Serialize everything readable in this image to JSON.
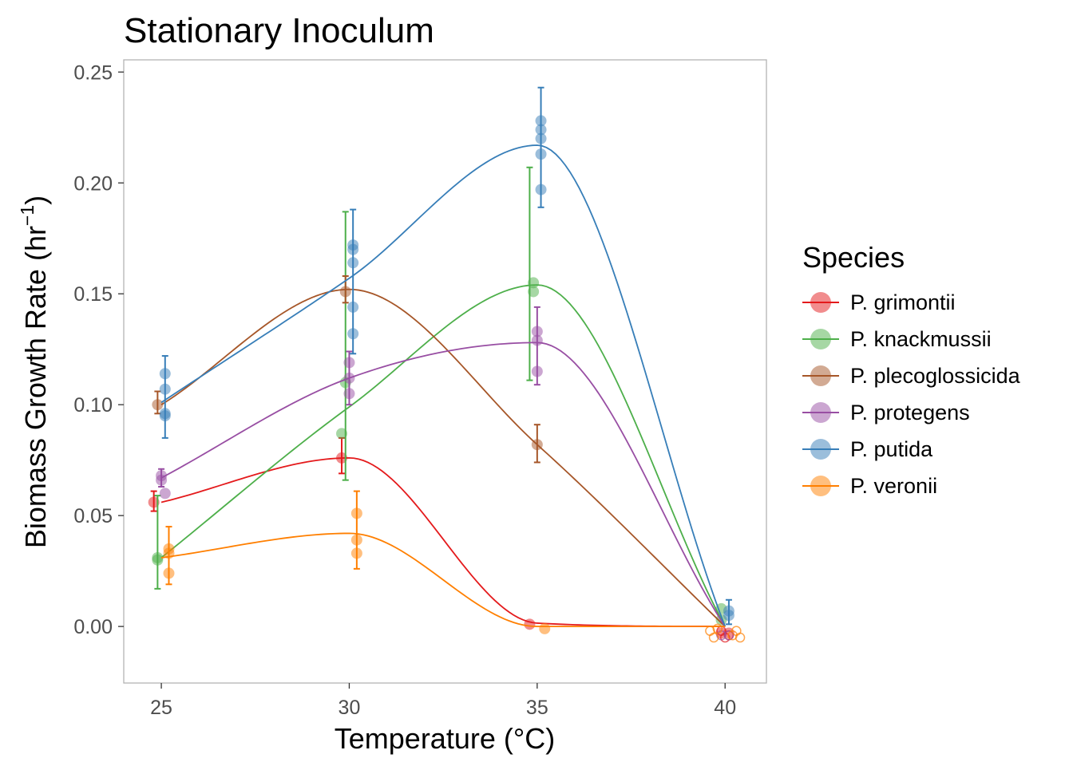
{
  "chart_data": {
    "type": "scatter",
    "title": "Stationary Inoculum",
    "xlabel": "Temperature (°C)",
    "ylabel_main": "Biomass Growth Rate (hr",
    "ylabel_sup": "−1",
    "ylabel_close": ")",
    "xlim": [
      24,
      41.1
    ],
    "ylim": [
      -0.0255,
      0.2555
    ],
    "x_ticks": [
      25,
      30,
      35,
      40
    ],
    "y_ticks": [
      0.0,
      0.05,
      0.1,
      0.15,
      0.2,
      0.25
    ],
    "y_tick_labels": [
      "0.00",
      "0.05",
      "0.10",
      "0.15",
      "0.20",
      "0.25"
    ],
    "grid": false,
    "legend": {
      "title": "Species",
      "position": "right"
    },
    "series": [
      {
        "name": "P. grimontii",
        "color": "#E41A1C",
        "curve": [
          [
            25,
            0.056
          ],
          [
            30,
            0.076
          ],
          [
            35,
            0.0015
          ],
          [
            40,
            0.0
          ]
        ],
        "points": [
          [
            24.8,
            0.056
          ],
          [
            29.8,
            0.076
          ],
          [
            34.8,
            0.001
          ],
          [
            39.9,
            -0.003
          ],
          [
            40.1,
            -0.003
          ]
        ],
        "errorbars": [
          [
            24.8,
            0.052,
            0.061
          ],
          [
            29.8,
            0.069,
            0.085
          ]
        ],
        "open_markers": [
          [
            39.9,
            -0.002
          ],
          [
            40.1,
            -0.004
          ],
          [
            40.0,
            -0.005
          ]
        ]
      },
      {
        "name": "P. knackmussii",
        "color": "#4DAF4A",
        "curve": [
          [
            25,
            0.031
          ],
          [
            30,
            0.099
          ],
          [
            35,
            0.154
          ],
          [
            40,
            0.0
          ]
        ],
        "points": [
          [
            24.9,
            0.031
          ],
          [
            24.9,
            0.03
          ],
          [
            29.8,
            0.087
          ],
          [
            29.9,
            0.11
          ],
          [
            34.9,
            0.155
          ],
          [
            34.9,
            0.151
          ],
          [
            39.9,
            0.008
          ],
          [
            39.9,
            0.003
          ]
        ],
        "errorbars": [
          [
            24.9,
            0.017,
            0.059
          ],
          [
            29.9,
            0.066,
            0.187
          ],
          [
            34.8,
            0.111,
            0.207
          ]
        ],
        "open_markers": []
      },
      {
        "name": "P. plecoglossicida",
        "color": "#A65628",
        "curve": [
          [
            25,
            0.1
          ],
          [
            30,
            0.152
          ],
          [
            35,
            0.082
          ],
          [
            40,
            0.0
          ]
        ],
        "points": [
          [
            24.9,
            0.1
          ],
          [
            29.9,
            0.151
          ],
          [
            35.0,
            0.082
          ]
        ],
        "errorbars": [
          [
            24.9,
            0.096,
            0.106
          ],
          [
            29.9,
            0.146,
            0.158
          ],
          [
            35.0,
            0.074,
            0.091
          ]
        ],
        "open_markers": []
      },
      {
        "name": "P. protegens",
        "color": "#984EA3",
        "curve": [
          [
            25,
            0.067
          ],
          [
            30,
            0.112
          ],
          [
            35,
            0.128
          ],
          [
            40,
            0.0
          ]
        ],
        "points": [
          [
            25.0,
            0.068
          ],
          [
            25.0,
            0.066
          ],
          [
            25.1,
            0.06
          ],
          [
            30.0,
            0.119
          ],
          [
            30.0,
            0.112
          ],
          [
            30.0,
            0.105
          ],
          [
            35.0,
            0.133
          ],
          [
            35.0,
            0.129
          ],
          [
            35.0,
            0.115
          ]
        ],
        "errorbars": [
          [
            25.0,
            0.063,
            0.071
          ],
          [
            30.0,
            0.1,
            0.124
          ],
          [
            35.0,
            0.109,
            0.144
          ]
        ],
        "open_markers": [
          [
            39.9,
            -0.004
          ],
          [
            40.1,
            -0.004
          ]
        ]
      },
      {
        "name": "P. putida",
        "color": "#377EB8",
        "curve": [
          [
            25,
            0.101
          ],
          [
            30,
            0.157
          ],
          [
            35,
            0.217
          ],
          [
            40,
            0.0
          ]
        ],
        "points": [
          [
            25.1,
            0.114
          ],
          [
            25.1,
            0.107
          ],
          [
            25.1,
            0.096
          ],
          [
            25.1,
            0.095
          ],
          [
            30.1,
            0.172
          ],
          [
            30.1,
            0.17
          ],
          [
            30.1,
            0.164
          ],
          [
            30.1,
            0.144
          ],
          [
            30.1,
            0.132
          ],
          [
            35.1,
            0.228
          ],
          [
            35.1,
            0.224
          ],
          [
            35.1,
            0.22
          ],
          [
            35.1,
            0.213
          ],
          [
            35.1,
            0.197
          ],
          [
            40.1,
            0.007
          ],
          [
            40.1,
            0.005
          ]
        ],
        "errorbars": [
          [
            25.1,
            0.085,
            0.122
          ],
          [
            30.1,
            0.123,
            0.188
          ],
          [
            35.1,
            0.189,
            0.243
          ],
          [
            40.1,
            0.001,
            0.012
          ]
        ],
        "open_markers": []
      },
      {
        "name": "P. veronii",
        "color": "#FF7F00",
        "curve": [
          [
            25,
            0.031
          ],
          [
            30,
            0.042
          ],
          [
            35,
            0.0
          ],
          [
            40,
            0.0
          ]
        ],
        "points": [
          [
            25.2,
            0.035
          ],
          [
            25.2,
            0.033
          ],
          [
            25.2,
            0.024
          ],
          [
            30.2,
            0.051
          ],
          [
            30.2,
            0.039
          ],
          [
            30.2,
            0.033
          ],
          [
            35.2,
            -0.001
          ]
        ],
        "errorbars": [
          [
            25.2,
            0.019,
            0.045
          ],
          [
            30.2,
            0.026,
            0.061
          ]
        ],
        "open_markers": [
          [
            39.6,
            -0.002
          ],
          [
            39.7,
            -0.005
          ],
          [
            39.8,
            -0.001
          ],
          [
            40.3,
            -0.002
          ],
          [
            40.4,
            -0.005
          ],
          [
            40.2,
            -0.004
          ]
        ]
      }
    ]
  }
}
